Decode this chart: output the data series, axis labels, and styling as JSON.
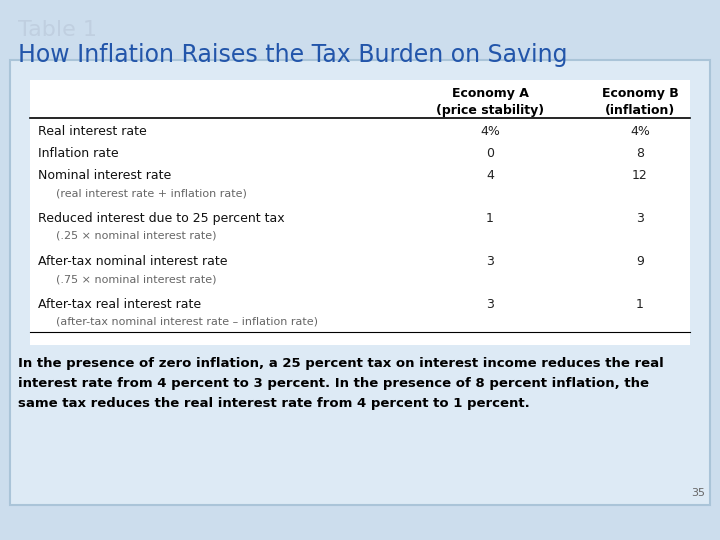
{
  "title_line1": "Table 1",
  "title_line2": "How Inflation Raises the Tax Burden on Saving",
  "title1_color": "#c0cfe0",
  "title2_color": "#2255aa",
  "background_color": "#ccdded",
  "outer_box_color": "#aac4d8",
  "inner_box_color": "#ddeaf5",
  "table_white_color": "#f0f6fb",
  "header_col1": "Economy A\n(price stability)",
  "header_col2": "Economy B\n(inflation)",
  "rows": [
    [
      "Real interest rate",
      "4%",
      "4%",
      false
    ],
    [
      "Inflation rate",
      "0",
      "8",
      false
    ],
    [
      "Nominal interest rate",
      "4",
      "12",
      false
    ],
    [
      "(real interest rate + inflation rate)",
      "",
      "",
      true
    ],
    [
      "Reduced interest due to 25 percent tax",
      "1",
      "3",
      false
    ],
    [
      "(.25 × nominal interest rate)",
      "",
      "",
      true
    ],
    [
      "After-tax nominal interest rate",
      "3",
      "9",
      false
    ],
    [
      "(.75 × nominal interest rate)",
      "",
      "",
      true
    ],
    [
      "After-tax real interest rate",
      "3",
      "1",
      false
    ],
    [
      "(after-tax nominal interest rate – inflation rate)",
      "",
      "",
      true
    ]
  ],
  "footnote_line1": "In the presence of zero inflation, a 25 percent tax on interest income reduces the real",
  "footnote_line2": "interest rate from 4 percent to 3 percent. In the presence of 8 percent inflation, the",
  "footnote_line3": "same tax reduces the real interest rate from 4 percent to 1 percent.",
  "page_number": "35"
}
